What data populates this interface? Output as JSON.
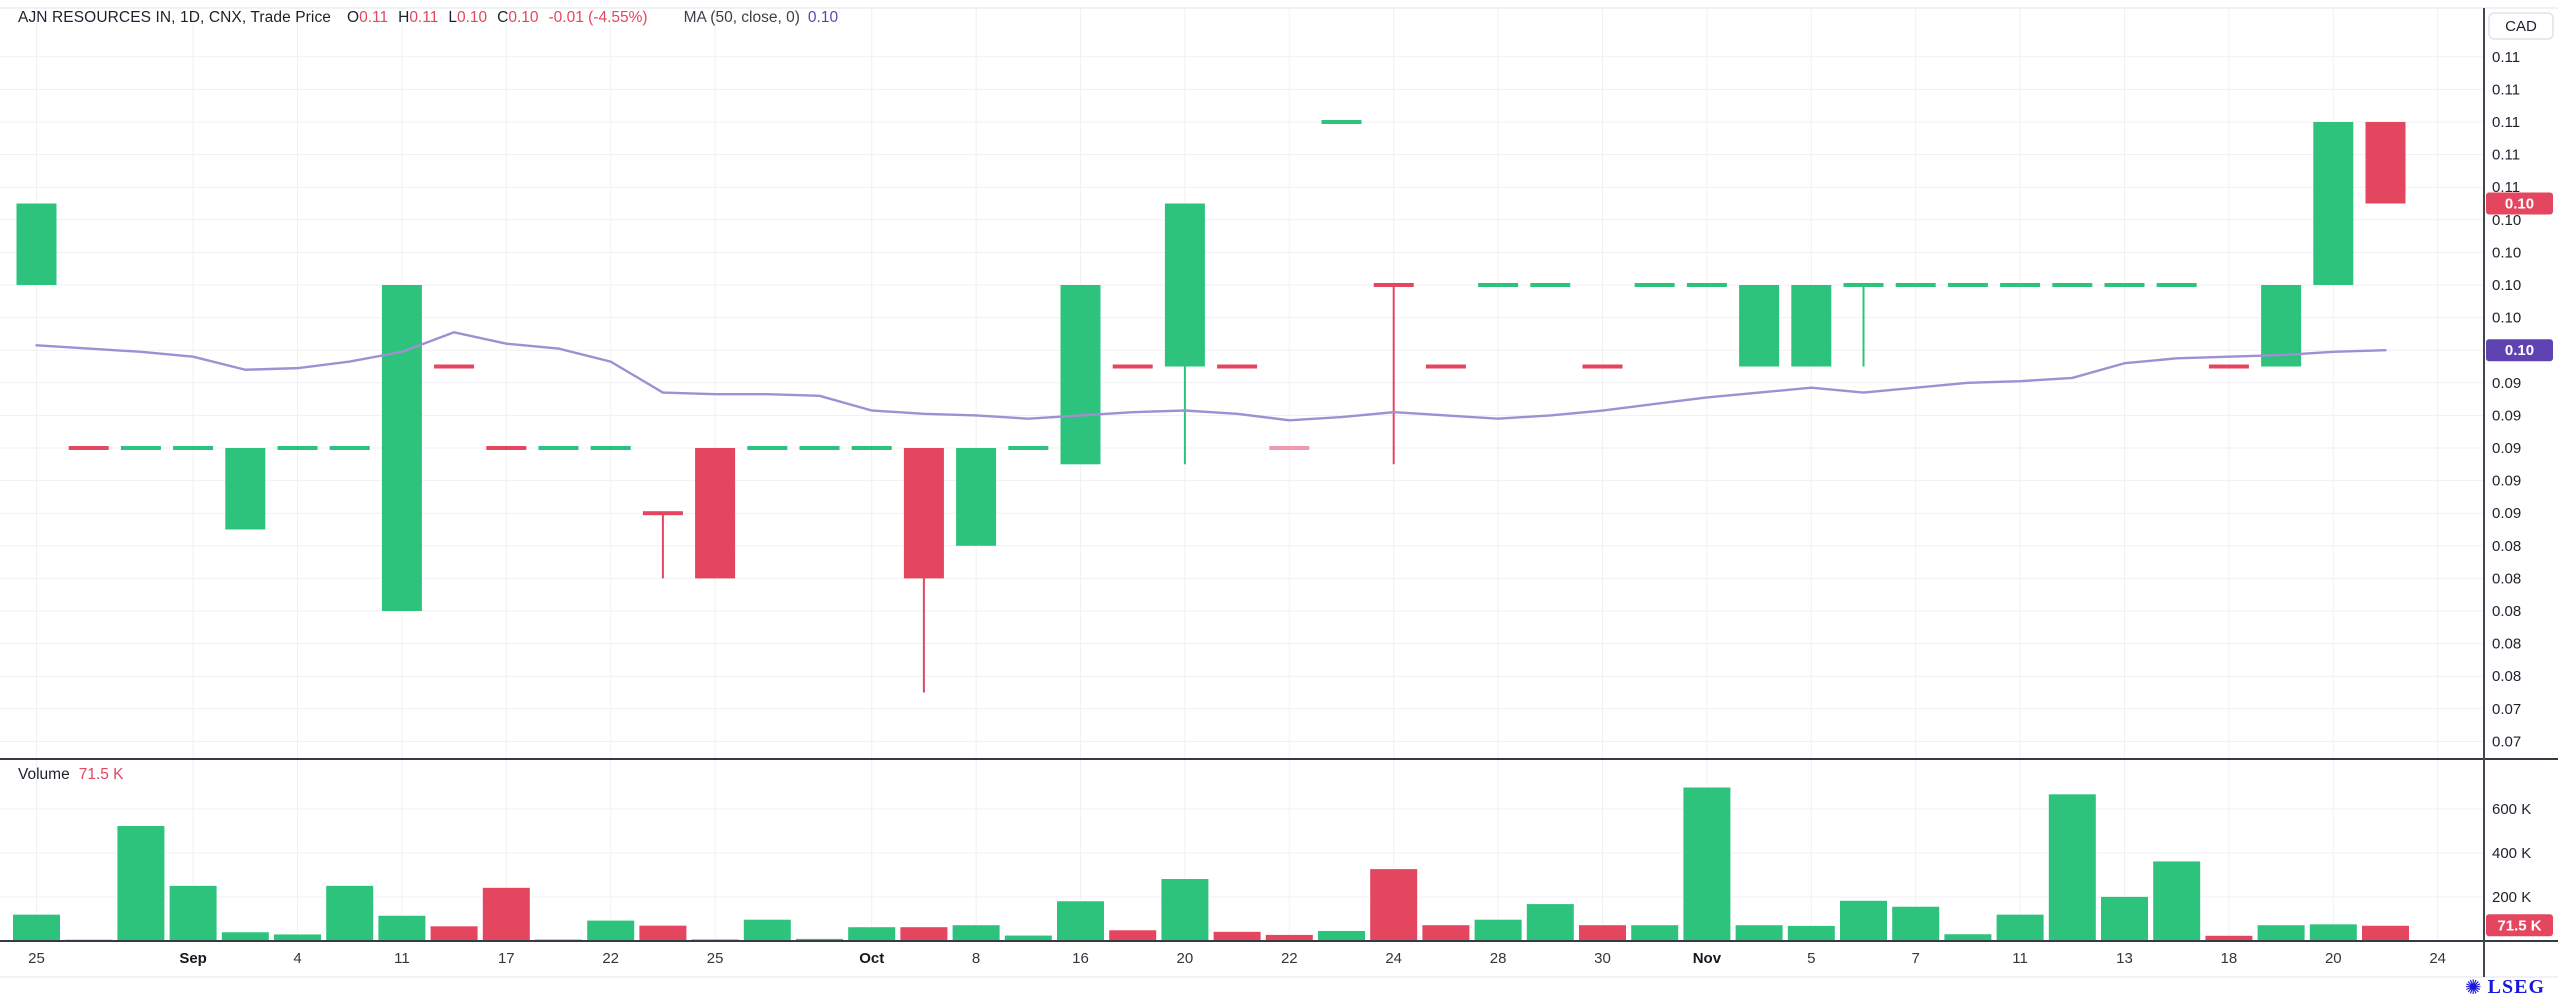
{
  "header": {
    "title": "AJN RESOURCES IN, 1D, CNX, Trade Price",
    "o_label": "O",
    "o_value": "0.11",
    "h_label": "H",
    "h_value": "0.11",
    "l_label": "L",
    "l_value": "0.10",
    "c_label": "C",
    "c_value": "0.10",
    "change": "-0.01 (-4.55%)",
    "ma_label": "MA (50, close, 0)",
    "ma_value": "0.10"
  },
  "volume_pane": {
    "label": "Volume",
    "value": "71.5 K"
  },
  "price_axis": {
    "currency": "CAD",
    "price_badge": "0.10",
    "ma_badge": "0.10",
    "volume_badge": "71.5 K",
    "volume_tick_labels": [
      "600 K",
      "400 K",
      "200 K"
    ]
  },
  "footer": {
    "logo_text": "LSEG",
    "logo_glyph": "✺"
  },
  "colors": {
    "up": "#2dc37c",
    "down": "#e4455f",
    "down_muted": "#f29aad",
    "ma_line": "#9e90d2",
    "ma_badge": "#5f43b2",
    "badge_red": "#e4455f",
    "grid": "#f0f1f4",
    "axis_line": "#41454f",
    "pane_sep": "#363a45",
    "light_border": "#e1e4ec",
    "text_dark": "#1d212b",
    "text_mid": "#32363f",
    "lseg_blue": "#1717dd"
  },
  "chart_data": {
    "type": "candlestick_with_volume",
    "title": "AJN RESOURCES IN, 1D, CNX, Trade Price",
    "price_unit": "CAD",
    "timeframe": "1D",
    "last_close": 0.105,
    "price_ticks": {
      "max": 0.114,
      "min": 0.072,
      "step": 0.002
    },
    "volume_axis": {
      "ticks_k": [
        200,
        400,
        600
      ]
    },
    "ma_overlay": {
      "period": 50,
      "source": "close",
      "offset": 0,
      "last": 0.096,
      "values": [
        0.0963,
        0.0961,
        0.0959,
        0.0956,
        0.0948,
        0.0949,
        0.0953,
        0.0959,
        0.0971,
        0.0964,
        0.0961,
        0.0953,
        0.0934,
        0.0933,
        0.0933,
        0.0932,
        0.0923,
        0.0921,
        0.092,
        0.0918,
        0.092,
        0.0922,
        0.0923,
        0.0921,
        0.0917,
        0.0919,
        0.0922,
        0.092,
        0.0918,
        0.092,
        0.0923,
        0.0927,
        0.0931,
        0.0934,
        0.0937,
        0.0934,
        0.0937,
        0.094,
        0.0941,
        0.0943,
        0.0952,
        0.0955,
        0.0956,
        0.0957,
        0.0959,
        0.096
      ]
    },
    "x_labels": [
      {
        "i": 0,
        "t": "25"
      },
      {
        "i": 3,
        "t": "Sep",
        "bold": true
      },
      {
        "i": 5,
        "t": "4"
      },
      {
        "i": 7,
        "t": "11"
      },
      {
        "i": 9,
        "t": "17"
      },
      {
        "i": 11,
        "t": "22"
      },
      {
        "i": 13,
        "t": "25"
      },
      {
        "i": 16,
        "t": "Oct",
        "bold": true
      },
      {
        "i": 18,
        "t": "8"
      },
      {
        "i": 20,
        "t": "16"
      },
      {
        "i": 22,
        "t": "20"
      },
      {
        "i": 24,
        "t": "22"
      },
      {
        "i": 26,
        "t": "24"
      },
      {
        "i": 28,
        "t": "28"
      },
      {
        "i": 30,
        "t": "30"
      },
      {
        "i": 32,
        "t": "Nov",
        "bold": true
      },
      {
        "i": 34,
        "t": "5"
      },
      {
        "i": 36,
        "t": "7"
      },
      {
        "i": 38,
        "t": "11"
      },
      {
        "i": 40,
        "t": "13"
      },
      {
        "i": 42,
        "t": "18"
      },
      {
        "i": 44,
        "t": "20"
      },
      {
        "i": 46,
        "t": "24"
      }
    ],
    "bars": [
      {
        "o": 0.1,
        "h": 0.105,
        "l": 0.1,
        "c": 0.105,
        "v_k": 122,
        "dir": "up"
      },
      {
        "o": 0.09,
        "h": 0.09,
        "l": 0.09,
        "c": 0.09,
        "v_k": 8,
        "dir": "down"
      },
      {
        "o": 0.09,
        "h": 0.09,
        "l": 0.09,
        "c": 0.09,
        "v_k": 525,
        "dir": "up"
      },
      {
        "o": 0.09,
        "h": 0.09,
        "l": 0.09,
        "c": 0.09,
        "v_k": 253,
        "dir": "up"
      },
      {
        "o": 0.085,
        "h": 0.09,
        "l": 0.085,
        "c": 0.09,
        "v_k": 42,
        "dir": "up"
      },
      {
        "o": 0.09,
        "h": 0.09,
        "l": 0.09,
        "c": 0.09,
        "v_k": 32,
        "dir": "up"
      },
      {
        "o": 0.09,
        "h": 0.09,
        "l": 0.09,
        "c": 0.09,
        "v_k": 253,
        "dir": "up"
      },
      {
        "o": 0.08,
        "h": 0.1,
        "l": 0.08,
        "c": 0.1,
        "v_k": 117,
        "dir": "up"
      },
      {
        "o": 0.095,
        "h": 0.095,
        "l": 0.095,
        "c": 0.095,
        "v_k": 69,
        "dir": "down"
      },
      {
        "o": 0.09,
        "h": 0.09,
        "l": 0.09,
        "c": 0.09,
        "v_k": 244,
        "dir": "down"
      },
      {
        "o": 0.09,
        "h": 0.09,
        "l": 0.09,
        "c": 0.09,
        "v_k": 9,
        "dir": "up"
      },
      {
        "o": 0.09,
        "h": 0.09,
        "l": 0.09,
        "c": 0.09,
        "v_k": 95,
        "dir": "up"
      },
      {
        "o": 0.086,
        "h": 0.086,
        "l": 0.082,
        "c": 0.086,
        "v_k": 72,
        "dir": "down"
      },
      {
        "o": 0.09,
        "h": 0.09,
        "l": 0.082,
        "c": 0.082,
        "v_k": 9,
        "dir": "down"
      },
      {
        "o": 0.09,
        "h": 0.09,
        "l": 0.09,
        "c": 0.09,
        "v_k": 99,
        "dir": "up"
      },
      {
        "o": 0.09,
        "h": 0.09,
        "l": 0.09,
        "c": 0.09,
        "v_k": 12,
        "dir": "up"
      },
      {
        "o": 0.09,
        "h": 0.09,
        "l": 0.09,
        "c": 0.09,
        "v_k": 65,
        "dir": "up"
      },
      {
        "o": 0.09,
        "h": 0.09,
        "l": 0.075,
        "c": 0.082,
        "v_k": 65,
        "dir": "down"
      },
      {
        "o": 0.084,
        "h": 0.09,
        "l": 0.084,
        "c": 0.09,
        "v_k": 74,
        "dir": "up"
      },
      {
        "o": 0.09,
        "h": 0.09,
        "l": 0.09,
        "c": 0.09,
        "v_k": 27,
        "dir": "up"
      },
      {
        "o": 0.089,
        "h": 0.1,
        "l": 0.089,
        "c": 0.1,
        "v_k": 183,
        "dir": "up"
      },
      {
        "o": 0.095,
        "h": 0.095,
        "l": 0.095,
        "c": 0.095,
        "v_k": 51,
        "dir": "down"
      },
      {
        "o": 0.095,
        "h": 0.105,
        "l": 0.089,
        "c": 0.105,
        "v_k": 284,
        "dir": "up"
      },
      {
        "o": 0.095,
        "h": 0.095,
        "l": 0.095,
        "c": 0.095,
        "v_k": 44,
        "dir": "down"
      },
      {
        "o": 0.09,
        "h": 0.09,
        "l": 0.09,
        "c": 0.09,
        "v_k": 30,
        "dir": "down",
        "muted": true
      },
      {
        "o": 0.11,
        "h": 0.11,
        "l": 0.11,
        "c": 0.11,
        "v_k": 48,
        "dir": "up"
      },
      {
        "o": 0.1,
        "h": 0.1,
        "l": 0.089,
        "c": 0.1,
        "v_k": 329,
        "dir": "down"
      },
      {
        "o": 0.095,
        "h": 0.095,
        "l": 0.095,
        "c": 0.095,
        "v_k": 74,
        "dir": "down"
      },
      {
        "o": 0.1,
        "h": 0.1,
        "l": 0.1,
        "c": 0.1,
        "v_k": 99,
        "dir": "up"
      },
      {
        "o": 0.1,
        "h": 0.1,
        "l": 0.1,
        "c": 0.1,
        "v_k": 170,
        "dir": "up"
      },
      {
        "o": 0.095,
        "h": 0.095,
        "l": 0.095,
        "c": 0.095,
        "v_k": 74,
        "dir": "down"
      },
      {
        "o": 0.1,
        "h": 0.1,
        "l": 0.1,
        "c": 0.1,
        "v_k": 74,
        "dir": "up"
      },
      {
        "o": 0.1,
        "h": 0.1,
        "l": 0.1,
        "c": 0.1,
        "v_k": 700,
        "dir": "up"
      },
      {
        "o": 0.095,
        "h": 0.1,
        "l": 0.095,
        "c": 0.1,
        "v_k": 74,
        "dir": "up"
      },
      {
        "o": 0.095,
        "h": 0.1,
        "l": 0.095,
        "c": 0.1,
        "v_k": 71,
        "dir": "up"
      },
      {
        "o": 0.1,
        "h": 0.1,
        "l": 0.095,
        "c": 0.1,
        "v_k": 185,
        "dir": "up"
      },
      {
        "o": 0.1,
        "h": 0.1,
        "l": 0.1,
        "c": 0.1,
        "v_k": 158,
        "dir": "up"
      },
      {
        "o": 0.1,
        "h": 0.1,
        "l": 0.1,
        "c": 0.1,
        "v_k": 33,
        "dir": "up"
      },
      {
        "o": 0.1,
        "h": 0.1,
        "l": 0.1,
        "c": 0.1,
        "v_k": 122,
        "dir": "up"
      },
      {
        "o": 0.1,
        "h": 0.1,
        "l": 0.1,
        "c": 0.1,
        "v_k": 669,
        "dir": "up"
      },
      {
        "o": 0.1,
        "h": 0.1,
        "l": 0.1,
        "c": 0.1,
        "v_k": 203,
        "dir": "up"
      },
      {
        "o": 0.1,
        "h": 0.1,
        "l": 0.1,
        "c": 0.1,
        "v_k": 364,
        "dir": "up"
      },
      {
        "o": 0.095,
        "h": 0.095,
        "l": 0.095,
        "c": 0.095,
        "v_k": 26,
        "dir": "down"
      },
      {
        "o": 0.095,
        "h": 0.1,
        "l": 0.095,
        "c": 0.1,
        "v_k": 74,
        "dir": "up"
      },
      {
        "o": 0.1,
        "h": 0.11,
        "l": 0.1,
        "c": 0.11,
        "v_k": 78,
        "dir": "up"
      },
      {
        "o": 0.11,
        "h": 0.11,
        "l": 0.105,
        "c": 0.105,
        "v_k": 71.5,
        "dir": "down"
      }
    ]
  }
}
